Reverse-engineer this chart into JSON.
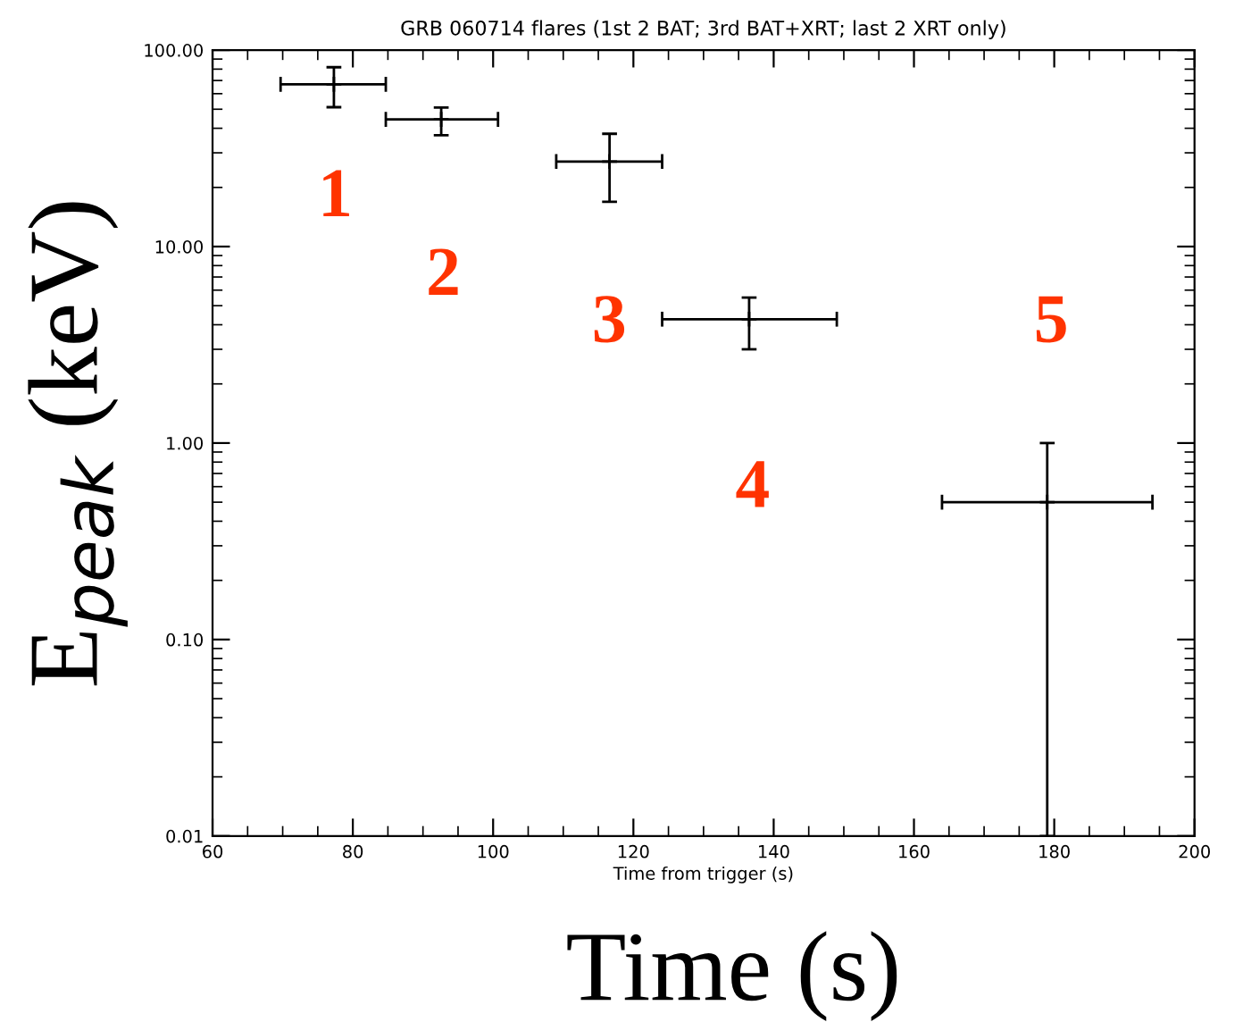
{
  "chart_data": {
    "type": "scatter",
    "title": "GRB 060714 flares (1st 2 BAT; 3rd BAT+XRT; last 2 XRT only)",
    "xlabel": "Time from trigger (s)",
    "ylabel": "E$_{peak}$ (keV)",
    "x": [
      77.3,
      92.6,
      116.6,
      136.5,
      179
    ],
    "series": [
      {
        "color": "#000000",
        "values": [
          66.9,
          44.4,
          27.1,
          4.27,
          0.5
        ],
        "errors": [
          [
            51.2,
            81.8
          ],
          [
            36.9,
            51
          ],
          [
            16.9,
            37.5
          ],
          [
            3.0,
            5.5
          ],
          [
            0.01,
            1.0
          ]
        ],
        "xerrors": [
          [
            69.7,
            84.7
          ],
          [
            84.7,
            100.7
          ],
          [
            109.0,
            124.1
          ],
          [
            124.1,
            149.0
          ],
          [
            164,
            194
          ]
        ]
      }
    ],
    "marker": "cross",
    "log": "y",
    "grid": false,
    "legend": false,
    "xlim": [
      60,
      200
    ],
    "xticks": [
      60,
      80,
      100,
      120,
      140,
      160,
      180,
      200
    ],
    "ylim": [
      0.01,
      100
    ],
    "yticks": [
      {
        "value": 0.01,
        "label": "0.01"
      },
      {
        "value": 0.1,
        "label": "0.10"
      },
      {
        "value": 1,
        "label": "1.00"
      },
      {
        "value": 10,
        "label": "10.00"
      },
      {
        "value": 100,
        "label": "100.00"
      }
    ],
    "annotations": [
      "1",
      "2",
      "3",
      "4",
      "5",
      "Time (s)"
    ]
  }
}
